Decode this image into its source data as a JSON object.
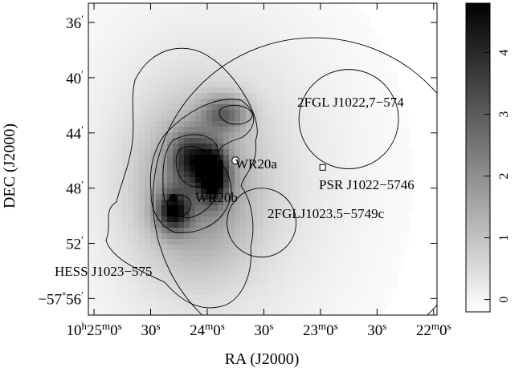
{
  "chart_data": {
    "type": "heatmap",
    "title": "",
    "xlabel": "RA (J2000)",
    "ylabel": "DEC (J2000)",
    "x_ticks": [
      {
        "label": [
          "10",
          "h",
          "25",
          "m",
          "0",
          "s"
        ],
        "ra_min": 25.0
      },
      {
        "label": [
          "30",
          "s"
        ],
        "ra_min": 24.5
      },
      {
        "label": [
          "24",
          "m",
          "0",
          "s"
        ],
        "ra_min": 24.0
      },
      {
        "label": [
          "30",
          "s"
        ],
        "ra_min": 23.5
      },
      {
        "label": [
          "23",
          "m",
          "0",
          "s"
        ],
        "ra_min": 23.0
      },
      {
        "label": [
          "30",
          "s"
        ],
        "ra_min": 22.5
      },
      {
        "label": [
          "22",
          "m",
          "0",
          "s"
        ],
        "ra_min": 22.0
      }
    ],
    "y_ticks": [
      {
        "label": [
          "36",
          "′"
        ],
        "dec_arcmin": 36
      },
      {
        "label": [
          "40",
          "′"
        ],
        "dec_arcmin": 40
      },
      {
        "label": [
          "44",
          "′"
        ],
        "dec_arcmin": 44
      },
      {
        "label": [
          "48",
          "′"
        ],
        "dec_arcmin": 48
      },
      {
        "label": [
          "52",
          "′"
        ],
        "dec_arcmin": 52
      },
      {
        "label": [
          "−57",
          "°",
          "56",
          "′"
        ],
        "dec_arcmin": 56
      }
    ],
    "x_range_ra_min": [
      25.05,
      21.97
    ],
    "y_range_dec_arcmin": [
      34.6,
      57.2
    ],
    "colorbar": {
      "ticks": [
        "0",
        "1",
        "2",
        "3",
        "4"
      ],
      "values": [
        0,
        1,
        2,
        3,
        4
      ],
      "range": [
        -0.2,
        4.8
      ],
      "colormap": "white-to-black"
    },
    "emission_peaks": [
      {
        "ra_min": 23.95,
        "dec_arcmin": 47.0,
        "amplitude": 4.2,
        "sigma_ra": 0.09,
        "sigma_dec": 1.3
      },
      {
        "ra_min": 24.3,
        "dec_arcmin": 49.7,
        "amplitude": 3.2,
        "sigma_ra": 0.1,
        "sigma_dec": 1.0
      },
      {
        "ra_min": 24.15,
        "dec_arcmin": 45.8,
        "amplitude": 2.3,
        "sigma_ra": 0.12,
        "sigma_dec": 1.3
      },
      {
        "ra_min": 23.85,
        "dec_arcmin": 42.6,
        "amplitude": 2.0,
        "sigma_ra": 0.14,
        "sigma_dec": 0.9
      },
      {
        "ra_min": 24.1,
        "dec_arcmin": 48.0,
        "amplitude": 1.6,
        "sigma_ra": 0.35,
        "sigma_dec": 4.0
      },
      {
        "ra_min": 23.95,
        "dec_arcmin": 47.5,
        "amplitude": 0.7,
        "sigma_ra": 0.85,
        "sigma_dec": 9.0
      }
    ],
    "sources": [
      {
        "name": "WR20a",
        "ra_min": 23.75,
        "dec_arcmin": 46.0,
        "marker": "open-circle"
      },
      {
        "name": "WR20b",
        "ra_min": 24.3,
        "dec_arcmin": 48.7,
        "marker": "filled-circle"
      },
      {
        "name": "PSR J1022−5746",
        "ra_min": 22.98,
        "dec_arcmin": 46.5,
        "marker": "open-square"
      }
    ],
    "regions": [
      {
        "name": "HESS J1023−575",
        "ra_min": 23.05,
        "dec_arcmin": 48.8,
        "radius_arcmin": 11.7
      },
      {
        "name": "2FGL J1022,7−574",
        "ra_min": 22.75,
        "dec_arcmin": 43.0,
        "radius_arcmin": 3.6
      },
      {
        "name": "2FGLJ1023.5−5749c",
        "ra_min": 23.52,
        "dec_arcmin": 50.5,
        "radius_arcmin": 2.5
      }
    ]
  }
}
